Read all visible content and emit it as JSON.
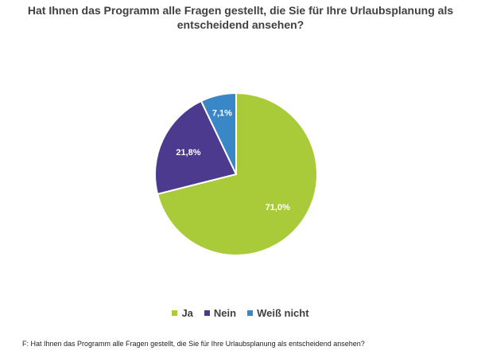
{
  "chart_data": {
    "type": "pie",
    "title_line1": "Hat Ihnen das Programm alle Fragen gestellt, die Sie für Ihre Urlaubsplanung als",
    "title_line2": "entscheidend ansehen?",
    "categories": [
      "Ja",
      "Nein",
      "Weiß nicht"
    ],
    "values": [
      71.0,
      21.8,
      7.1
    ],
    "data_labels": [
      "71,0%",
      "21,8%",
      "7,1%"
    ],
    "colors": [
      "#A9CB3A",
      "#4C3A8F",
      "#3A87C7"
    ],
    "legend_position": "bottom"
  },
  "footnote": "F: Hat Ihnen das Programm alle Fragen gestellt, die Sie für Ihre Urlaubsplanung als entscheidend ansehen?"
}
